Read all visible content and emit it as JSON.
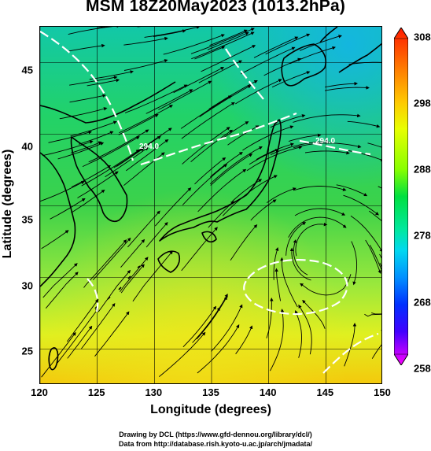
{
  "title": "MSM 18Z20May2023 (1013.2hPa)",
  "x_axis": {
    "label": "Longitude (degrees)",
    "ticks": [
      "120",
      "125",
      "130",
      "135",
      "140",
      "145",
      "150"
    ],
    "range": [
      120,
      150
    ]
  },
  "y_axis": {
    "label": "Latitude  (degrees)",
    "ticks": [
      "25",
      "30",
      "35",
      "40",
      "45"
    ],
    "range": [
      22.5,
      47.5
    ]
  },
  "colorbar": {
    "ticks": [
      "308",
      "298",
      "288",
      "278",
      "268",
      "258"
    ],
    "range": [
      258,
      308
    ],
    "colors": [
      "#ff00ff",
      "#0000ff",
      "#00c8ff",
      "#00e060",
      "#c8ff00",
      "#ff0000"
    ]
  },
  "contour_labels": [
    "294.0",
    "294.0"
  ],
  "credits": {
    "line1": "Drawing by DCL (https://www.gfd-dennou.org/library/dcl/)",
    "line2": "Data from http://database.rish.kyoto-u.ac.jp/arch/jmadata/"
  }
}
